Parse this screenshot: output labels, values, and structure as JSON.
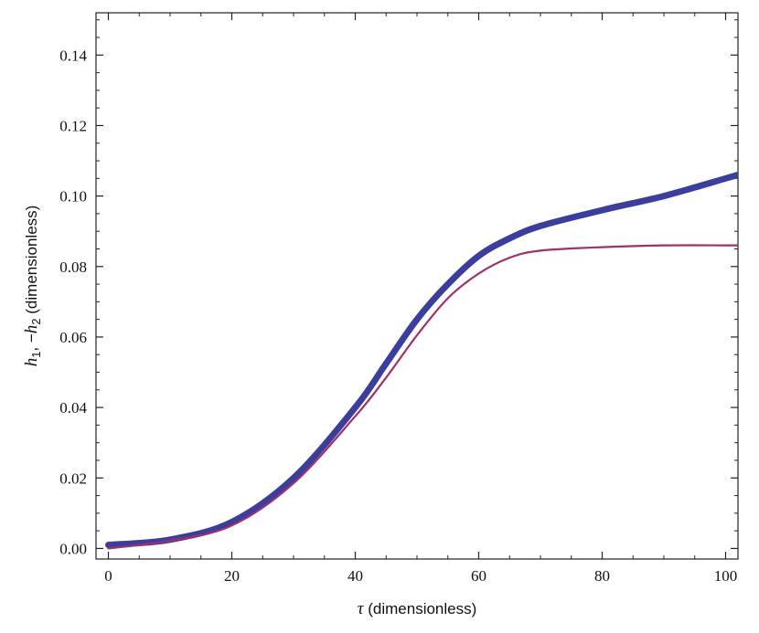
{
  "chart_data": {
    "type": "line",
    "xlabel_symbol": "τ",
    "xlabel_text": " (dimensionless)",
    "ylabel_parts": {
      "h": "h",
      "sub1": "1",
      "sep": ", −",
      "sub2": "2",
      "text": "  (dimensionless)"
    },
    "xlim": [
      -2,
      102
    ],
    "ylim": [
      -0.003,
      0.152
    ],
    "x_ticks": [
      0,
      20,
      40,
      60,
      80,
      100
    ],
    "x_tick_labels": [
      "0",
      "20",
      "40",
      "60",
      "80",
      "100"
    ],
    "y_ticks": [
      0.0,
      0.02,
      0.04,
      0.06,
      0.08,
      0.1,
      0.12,
      0.14
    ],
    "y_tick_labels": [
      "0.00",
      "0.02",
      "0.04",
      "0.06",
      "0.08",
      "0.10",
      "0.12",
      "0.14"
    ],
    "series": [
      {
        "color": "#3b3e9c",
        "width": "thick",
        "points": [
          [
            0,
            0.001
          ],
          [
            10,
            0.0025
          ],
          [
            20,
            0.0075
          ],
          [
            30,
            0.02
          ],
          [
            40,
            0.04
          ],
          [
            45,
            0.0525
          ],
          [
            50,
            0.065
          ],
          [
            55,
            0.075
          ],
          [
            60,
            0.083
          ],
          [
            65,
            0.088
          ],
          [
            70,
            0.0915
          ],
          [
            80,
            0.096
          ],
          [
            90,
            0.1
          ],
          [
            100,
            0.105
          ],
          [
            102,
            0.106
          ]
        ]
      },
      {
        "color": "#a0306a",
        "width": "thin",
        "points": [
          [
            0,
            0.0
          ],
          [
            10,
            0.0022
          ],
          [
            20,
            0.0065
          ],
          [
            30,
            0.0185
          ],
          [
            40,
            0.0375
          ],
          [
            45,
            0.0485
          ],
          [
            50,
            0.0605
          ],
          [
            55,
            0.071
          ],
          [
            60,
            0.078
          ],
          [
            65,
            0.0825
          ],
          [
            70,
            0.0845
          ],
          [
            80,
            0.0855
          ],
          [
            90,
            0.086
          ],
          [
            100,
            0.086
          ],
          [
            102,
            0.086
          ]
        ]
      }
    ]
  }
}
